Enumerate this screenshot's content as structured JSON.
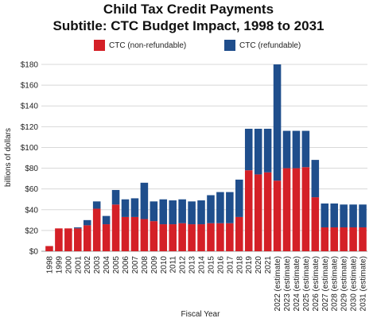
{
  "chart_data": {
    "type": "bar",
    "stacked": true,
    "title": "Child Tax Credit Payments",
    "subtitle": "Subtitle: CTC Budget Impact, 1998 to 2031",
    "xlabel": "Fiscal Year",
    "ylabel": "billions of dollars",
    "ylim": [
      0,
      180
    ],
    "yticks": [
      0,
      20,
      40,
      60,
      80,
      100,
      120,
      140,
      160,
      180
    ],
    "ytick_labels": [
      "$0",
      "$20",
      "$40",
      "$60",
      "$80",
      "$100",
      "$120",
      "$140",
      "$160",
      "$180"
    ],
    "grid": true,
    "legend_position": "top",
    "categories": [
      "1998",
      "1999",
      "2000",
      "2001",
      "2002",
      "2003",
      "2004",
      "2005",
      "2006",
      "2007",
      "2008",
      "2009",
      "2010",
      "2011",
      "2012",
      "2013",
      "2014",
      "2015",
      "2016",
      "2017",
      "2018",
      "2019",
      "2020",
      "2021",
      "2022 (estimate)",
      "2023 (estimate)",
      "2024 (estimate)",
      "2025 (estimate)",
      "2026 (estimate)",
      "2027 (estimate)",
      "2028 (estimate)",
      "2029 (estimate)",
      "2030 (estimate)",
      "2031 (estimate)"
    ],
    "series": [
      {
        "name": "CTC (non-refundable)",
        "color": "#d42027",
        "values": [
          5,
          22,
          22,
          22,
          25,
          41,
          26,
          45,
          33,
          33,
          31,
          29,
          26,
          26,
          27,
          26,
          26,
          27,
          27,
          27,
          33,
          78,
          74,
          76,
          68,
          80,
          80,
          81,
          52,
          23,
          23,
          23,
          23,
          23
        ]
      },
      {
        "name": "CTC (refundable)",
        "color": "#1f4e8c",
        "values": [
          0,
          0,
          0,
          1,
          5,
          7,
          8,
          14,
          17,
          18,
          35,
          19,
          24,
          23,
          23,
          22,
          23,
          27,
          30,
          30,
          36,
          40,
          44,
          42,
          112,
          36,
          36,
          35,
          36,
          23,
          23,
          22,
          22,
          22
        ]
      }
    ]
  }
}
